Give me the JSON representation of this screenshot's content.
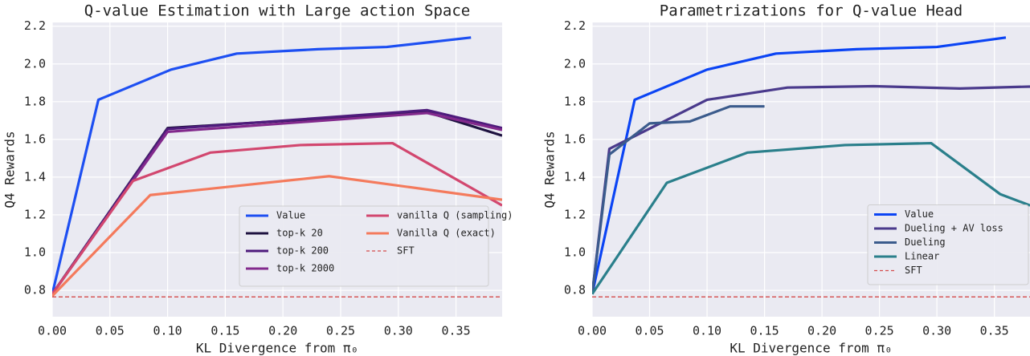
{
  "chart_data": [
    {
      "type": "line",
      "title": "Q-value Estimation with Large action Space",
      "xlabel": "KL Divergence from π₀",
      "ylabel": "Q4 Rewards",
      "xlim": [
        0,
        0.39
      ],
      "ylim": [
        0.66,
        2.22
      ],
      "xticks": [
        {
          "value": 0,
          "label": "0.00"
        },
        {
          "value": 0.05,
          "label": "0.05"
        },
        {
          "value": 0.1,
          "label": "0.10"
        },
        {
          "value": 0.15,
          "label": "0.15"
        },
        {
          "value": 0.2,
          "label": "0.20"
        },
        {
          "value": 0.25,
          "label": "0.25"
        },
        {
          "value": 0.3,
          "label": "0.30"
        },
        {
          "value": 0.35,
          "label": "0.35"
        }
      ],
      "yticks": [
        0.8,
        {
          "value": 1,
          "label": "1.0"
        },
        1.2,
        1.4,
        1.6,
        1.8,
        {
          "value": 2,
          "label": "2.0"
        },
        2.2
      ],
      "grid": true,
      "legend": "lower right",
      "legend_columns": 2,
      "series": [
        {
          "name": "Value",
          "color": "#1d4ff2",
          "x": [
            0,
            0.04,
            0.103,
            0.16,
            0.23,
            0.29,
            0.363
          ],
          "values": [
            0.78,
            1.81,
            1.97,
            2.055,
            2.078,
            2.09,
            2.14
          ]
        },
        {
          "name": "top-k 20",
          "color": "#1e1240",
          "x": [
            0,
            0.1,
            0.325,
            0.39
          ],
          "values": [
            0.78,
            1.66,
            1.745,
            1.62
          ]
        },
        {
          "name": "top-k 200",
          "color": "#4e1b7c",
          "x": [
            0,
            0.1,
            0.325,
            0.39
          ],
          "values": [
            0.78,
            1.655,
            1.755,
            1.66
          ]
        },
        {
          "name": "top-k 2000",
          "color": "#82298c",
          "x": [
            0,
            0.1,
            0.325,
            0.39
          ],
          "values": [
            0.78,
            1.64,
            1.74,
            1.65
          ]
        },
        {
          "name": "vanilla Q (sampling)",
          "color": "#d2476f",
          "x": [
            0,
            0.07,
            0.137,
            0.215,
            0.295,
            0.39
          ],
          "values": [
            0.78,
            1.38,
            1.53,
            1.57,
            1.58,
            1.25
          ]
        },
        {
          "name": "Vanilla Q (exact)",
          "color": "#f47a5c",
          "x": [
            0,
            0.085,
            0.24,
            0.39
          ],
          "values": [
            0.77,
            1.305,
            1.405,
            1.28
          ]
        },
        {
          "name": "SFT",
          "color": "#d44b4b",
          "linestyle": "dashed",
          "x": [
            0,
            0.39
          ],
          "values": [
            0.765,
            0.765
          ]
        }
      ]
    },
    {
      "type": "line",
      "title": "Parametrizations for Q-value Head",
      "xlabel": "KL Divergence from π₀",
      "ylabel": "Q4 Rewards",
      "xlim": [
        0,
        0.381
      ],
      "ylim": [
        0.66,
        2.22
      ],
      "xticks": [
        {
          "value": 0,
          "label": "0.00"
        },
        {
          "value": 0.05,
          "label": "0.05"
        },
        {
          "value": 0.1,
          "label": "0.10"
        },
        {
          "value": 0.15,
          "label": "0.15"
        },
        {
          "value": 0.2,
          "label": "0.20"
        },
        {
          "value": 0.25,
          "label": "0.25"
        },
        {
          "value": 0.3,
          "label": "0.30"
        },
        {
          "value": 0.35,
          "label": "0.35"
        }
      ],
      "yticks": [
        0.8,
        {
          "value": 1,
          "label": "1.0"
        },
        1.2,
        1.4,
        1.6,
        1.8,
        {
          "value": 2,
          "label": "2.0"
        },
        2.2
      ],
      "grid": true,
      "legend": "lower right",
      "legend_columns": 1,
      "series": [
        {
          "name": "Value",
          "color": "#0b44f4",
          "x": [
            0,
            0.037,
            0.1,
            0.16,
            0.23,
            0.3,
            0.36
          ],
          "values": [
            0.78,
            1.81,
            1.97,
            2.055,
            2.078,
            2.09,
            2.14
          ]
        },
        {
          "name": "Dueling + AV loss",
          "color": "#4a3a8c",
          "x": [
            0,
            0.015,
            0.1,
            0.17,
            0.245,
            0.32,
            0.381
          ],
          "values": [
            0.78,
            1.55,
            1.81,
            1.875,
            1.882,
            1.87,
            1.88
          ]
        },
        {
          "name": "Dueling",
          "color": "#3b5b8c",
          "x": [
            0,
            0.015,
            0.05,
            0.085,
            0.12,
            0.15
          ],
          "values": [
            0.78,
            1.52,
            1.685,
            1.695,
            1.775,
            1.775
          ]
        },
        {
          "name": "Linear",
          "color": "#2a7f8b",
          "x": [
            0,
            0.065,
            0.135,
            0.22,
            0.295,
            0.355,
            0.381
          ],
          "values": [
            0.78,
            1.37,
            1.53,
            1.57,
            1.58,
            1.31,
            1.25
          ]
        },
        {
          "name": "SFT",
          "color": "#d44b4b",
          "linestyle": "dashed",
          "x": [
            0,
            0.381
          ],
          "values": [
            0.765,
            0.765
          ]
        }
      ]
    }
  ]
}
